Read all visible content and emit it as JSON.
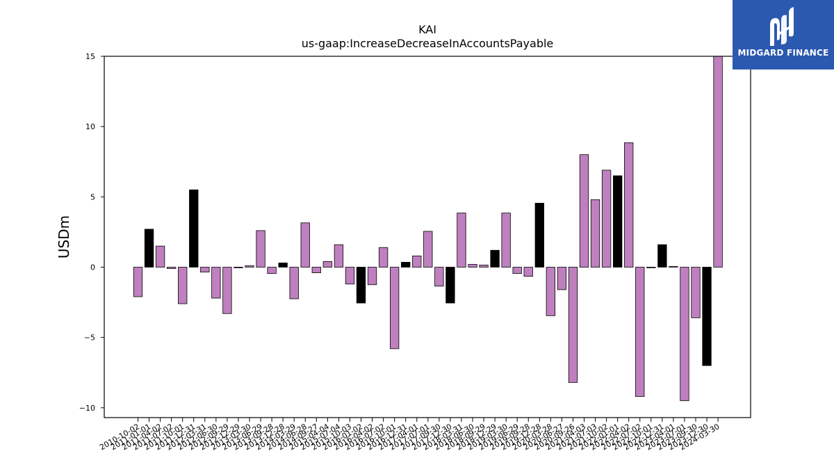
{
  "chart_data": {
    "type": "bar",
    "title": "KAI",
    "subtitle": "us-gaap:IncreaseDecreaseInAccountsPayable",
    "xlabel": "",
    "ylabel": "USDm",
    "ylim": [
      -10.7,
      15
    ],
    "yticks": [
      -10,
      -5,
      0,
      5,
      10,
      15
    ],
    "ytick_labels": [
      "−10",
      "−5",
      "0",
      "5",
      "10",
      "15"
    ],
    "colors": {
      "quarter": "#bf80bf",
      "annual": "#000000",
      "edge": "#000000"
    },
    "categories": [
      "2010-10-02",
      "2011-01-01",
      "2011-04-02",
      "2011-07-02",
      "2011-10-01",
      "2011-12-31",
      "2012-03-31",
      "2012-06-30",
      "2012-09-29",
      "2012-12-29",
      "2013-03-30",
      "2013-06-29",
      "2013-09-28",
      "2013-12-28",
      "2014-03-29",
      "2014-06-28",
      "2014-09-27",
      "2015-04-04",
      "2015-07-04",
      "2015-10-03",
      "2016-01-02",
      "2016-04-02",
      "2016-07-02",
      "2016-10-01",
      "2016-12-31",
      "2017-04-01",
      "2017-07-01",
      "2017-09-30",
      "2017-12-30",
      "2018-03-31",
      "2018-06-30",
      "2018-09-29",
      "2018-12-29",
      "2019-03-30",
      "2019-06-29",
      "2019-09-28",
      "2019-12-28",
      "2020-03-28",
      "2020-06-27",
      "2020-09-26",
      "2021-04-03",
      "2021-07-03",
      "2021-10-02",
      "2022-01-01",
      "2022-04-02",
      "2022-07-02",
      "2022-10-01",
      "2022-12-31",
      "2023-04-01",
      "2023-07-01",
      "2023-09-30",
      "2023-12-30",
      "2024-03-30"
    ],
    "values": [
      -2.1,
      2.7,
      1.5,
      -0.1,
      -2.6,
      5.5,
      -0.35,
      -2.2,
      -3.3,
      -0.05,
      0.1,
      2.6,
      -0.45,
      0.3,
      -2.25,
      3.15,
      -0.4,
      0.4,
      1.6,
      -1.2,
      -2.55,
      -1.25,
      1.4,
      -5.8,
      0.35,
      0.8,
      2.55,
      -1.35,
      -2.55,
      3.85,
      0.2,
      0.15,
      1.2,
      3.85,
      -0.45,
      -0.65,
      4.55,
      -3.45,
      -1.6,
      -8.2,
      8.0,
      4.8,
      6.9,
      6.5,
      8.85,
      -9.2,
      -0.05,
      1.6,
      0.05,
      -9.5,
      -3.6,
      -7.0,
      15.0
    ],
    "annual": [
      false,
      true,
      false,
      false,
      false,
      true,
      false,
      false,
      false,
      false,
      false,
      false,
      false,
      true,
      false,
      false,
      false,
      false,
      false,
      false,
      true,
      false,
      false,
      false,
      true,
      false,
      false,
      false,
      true,
      false,
      false,
      false,
      true,
      false,
      false,
      false,
      true,
      false,
      false,
      false,
      false,
      false,
      false,
      true,
      false,
      false,
      false,
      true,
      false,
      false,
      false,
      true,
      false
    ]
  },
  "logo": {
    "text": "MIDGARD FINANCE",
    "icon": "midgard-logo-icon",
    "background": "#2b59b0"
  }
}
